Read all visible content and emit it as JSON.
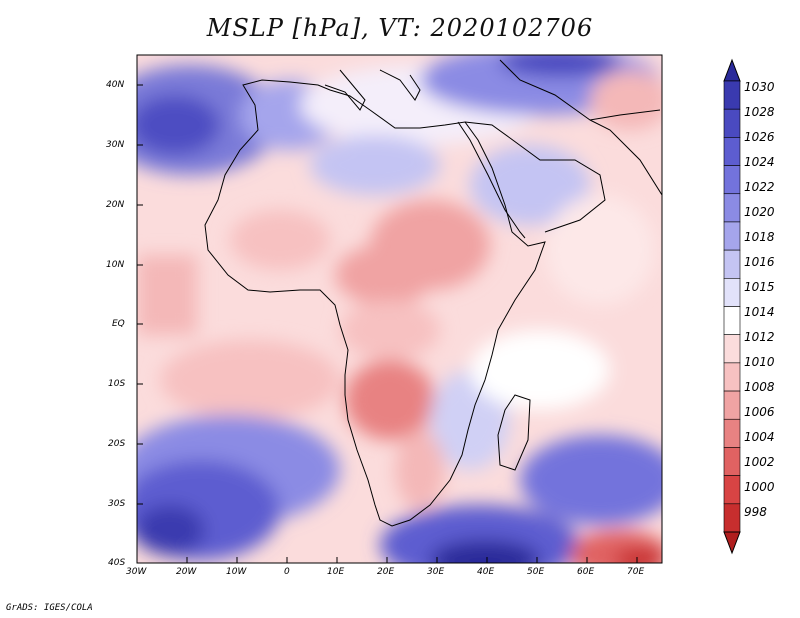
{
  "title": "MSLP [hPa], VT: 2020102706",
  "credit": "GrADS: IGES/COLA",
  "map": {
    "region": "Africa",
    "variable": "Mean sea level pressure",
    "units": "hPa",
    "lat_range": [
      -40,
      45
    ],
    "lon_range": [
      -30,
      75
    ],
    "lat_ticks": [
      "40N",
      "30N",
      "20N",
      "10N",
      "EQ",
      "10S",
      "20S",
      "30S",
      "40S"
    ],
    "lon_ticks": [
      "30W",
      "20W",
      "10W",
      "0",
      "10E",
      "20E",
      "30E",
      "40E",
      "50E",
      "60E",
      "70E"
    ]
  },
  "colorbar": {
    "levels": [
      "1030",
      "1028",
      "1026",
      "1024",
      "1022",
      "1020",
      "1018",
      "1016",
      "1015",
      "1014",
      "1012",
      "1010",
      "1008",
      "1006",
      "1004",
      "1002",
      "1000",
      "998"
    ],
    "colors": [
      "#2a2a9a",
      "#3a3aaf",
      "#4a4ac0",
      "#5d5dd0",
      "#7373dc",
      "#8b8be4",
      "#a5a5ec",
      "#c4c4f3",
      "#e2e2fa",
      "#ffffff",
      "#fbdcdc",
      "#f7c1c1",
      "#f0a3a3",
      "#e88282",
      "#e06262",
      "#d84444",
      "#c72e2e",
      "#b01e1e"
    ]
  }
}
